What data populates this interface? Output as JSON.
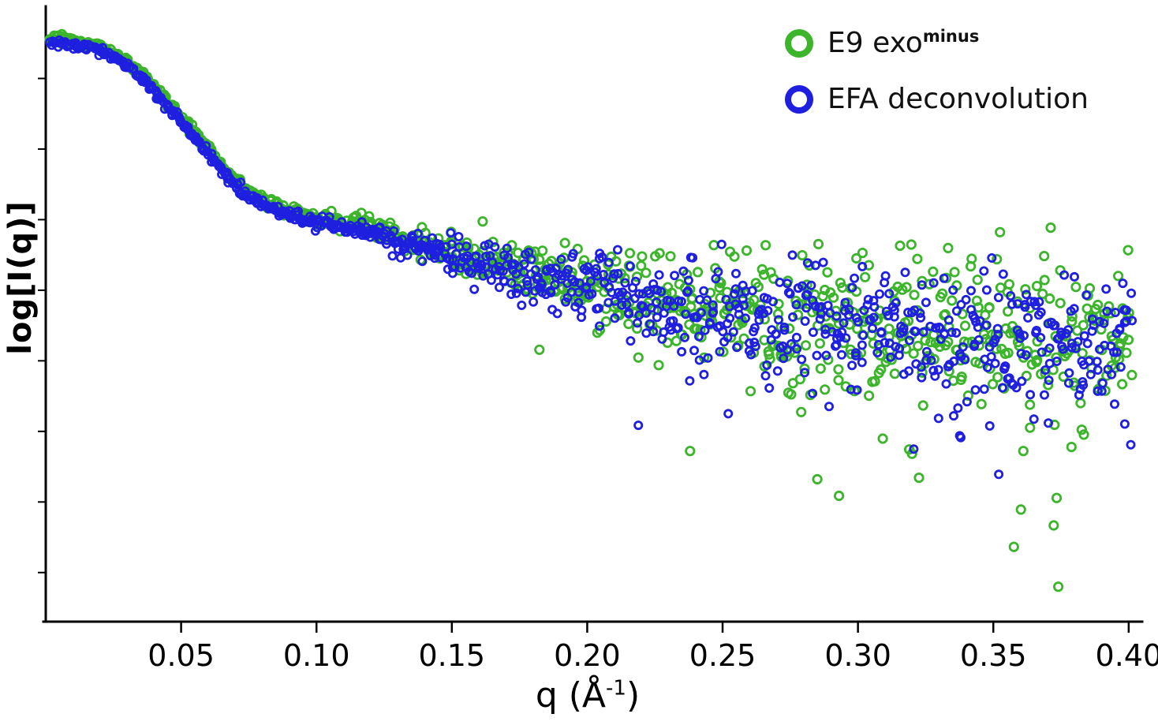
{
  "figure": {
    "ylabel": "log[I(q)]",
    "xlabel_parts": {
      "pre": "q (Å",
      "sup": "-1",
      "post": ")"
    },
    "legend": [
      {
        "label": "E9 exo",
        "superscript": "minus",
        "color": "#3cb42c"
      },
      {
        "label": "EFA deconvolution",
        "superscript": "",
        "color": "#1f1fe0"
      }
    ]
  },
  "chart_data": {
    "type": "scatter",
    "title": "",
    "xlabel": "q (Å⁻¹)",
    "ylabel": "log[I(q)]",
    "xlim": [
      0,
      0.405
    ],
    "ylim_note": "y axis shows log intensity, arbitrary units, no numeric tick labels",
    "x_ticks": [
      0.05,
      0.1,
      0.15,
      0.2,
      0.25,
      0.3,
      0.35,
      0.4
    ],
    "x_tick_labels": [
      "0.05",
      "0.10",
      "0.15",
      "0.20",
      "0.25",
      "0.30",
      "0.35",
      "0.40"
    ],
    "y_minor_ticks": [
      0.08,
      0.195,
      0.31,
      0.425,
      0.54,
      0.655,
      0.77,
      0.885
    ],
    "grid": false,
    "legend_position": "top-right",
    "marker": "open-circle",
    "q_range": [
      0.002,
      0.401
    ],
    "mean_curve": [
      [
        0.002,
        0.947
      ],
      [
        0.01,
        0.943
      ],
      [
        0.018,
        0.936
      ],
      [
        0.026,
        0.921
      ],
      [
        0.034,
        0.895
      ],
      [
        0.042,
        0.858
      ],
      [
        0.05,
        0.818
      ],
      [
        0.058,
        0.776
      ],
      [
        0.066,
        0.733
      ],
      [
        0.074,
        0.7
      ],
      [
        0.082,
        0.679
      ],
      [
        0.09,
        0.664
      ],
      [
        0.1,
        0.654
      ],
      [
        0.11,
        0.647
      ],
      [
        0.12,
        0.638
      ],
      [
        0.13,
        0.624
      ],
      [
        0.14,
        0.61
      ],
      [
        0.155,
        0.594
      ],
      [
        0.17,
        0.577
      ],
      [
        0.185,
        0.562
      ],
      [
        0.2,
        0.545
      ],
      [
        0.215,
        0.531
      ],
      [
        0.23,
        0.518
      ],
      [
        0.245,
        0.507
      ],
      [
        0.26,
        0.496
      ],
      [
        0.28,
        0.486
      ],
      [
        0.3,
        0.477
      ],
      [
        0.32,
        0.47
      ],
      [
        0.34,
        0.465
      ],
      [
        0.36,
        0.461
      ],
      [
        0.38,
        0.458
      ],
      [
        0.401,
        0.456
      ]
    ],
    "noise_sigma": [
      [
        0.002,
        0.003
      ],
      [
        0.08,
        0.004
      ],
      [
        0.1,
        0.005
      ],
      [
        0.12,
        0.008
      ],
      [
        0.14,
        0.011
      ],
      [
        0.16,
        0.016
      ],
      [
        0.18,
        0.022
      ],
      [
        0.2,
        0.029
      ],
      [
        0.22,
        0.035
      ],
      [
        0.25,
        0.042
      ],
      [
        0.28,
        0.048
      ],
      [
        0.31,
        0.052
      ],
      [
        0.35,
        0.056
      ],
      [
        0.401,
        0.058
      ]
    ],
    "outlier_prob": [
      [
        0.12,
        0.0
      ],
      [
        0.18,
        0.01
      ],
      [
        0.22,
        0.025
      ],
      [
        0.28,
        0.04
      ],
      [
        0.34,
        0.05
      ],
      [
        0.401,
        0.055
      ]
    ],
    "outlier_mag": [
      [
        0.15,
        0.06
      ],
      [
        0.2,
        0.12
      ],
      [
        0.3,
        0.22
      ],
      [
        0.401,
        0.28
      ]
    ],
    "series": [
      {
        "name": "E9 exo minus",
        "slug": "e9-exo-minus",
        "color": "#3cb42c",
        "n_points": 900,
        "radius": 5.2,
        "stroke_width": 2.8,
        "bias": 0.004,
        "sigma_scale": 1.1,
        "seed": 101,
        "extra_points": [
          [
            0.374,
            0.057
          ],
          [
            0.238,
            0.278
          ],
          [
            0.285,
            0.232
          ],
          [
            0.293,
            0.205
          ]
        ]
      },
      {
        "name": "EFA deconvolution",
        "slug": "efa-deconvolution",
        "color": "#1f1fe0",
        "n_points": 900,
        "radius": 4.6,
        "stroke_width": 2.8,
        "bias": -0.003,
        "sigma_scale": 1.0,
        "seed": 202,
        "extra_points": [
          [
            0.352,
            0.24
          ],
          [
            0.338,
            0.3
          ],
          [
            0.365,
            0.33
          ]
        ]
      }
    ]
  }
}
